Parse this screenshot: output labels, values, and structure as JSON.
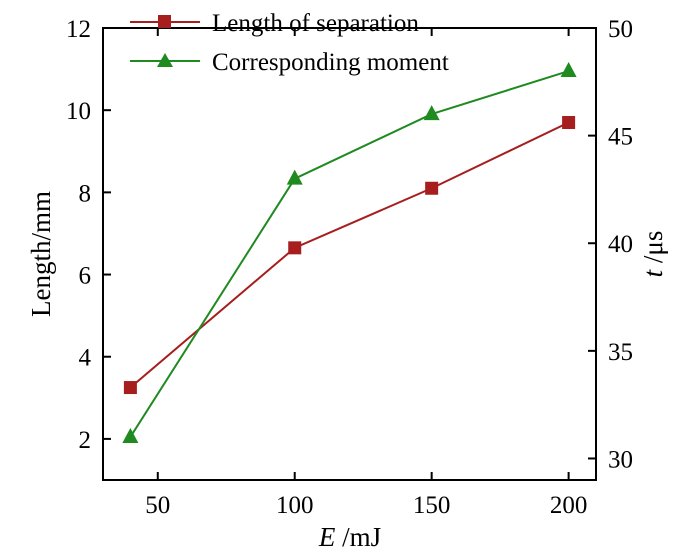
{
  "chart_data": {
    "type": "line",
    "x": [
      40,
      100,
      150,
      200
    ],
    "xlim": [
      30,
      210
    ],
    "x_ticks": [
      50,
      100,
      150,
      200
    ],
    "x_tick_labels": [
      "50",
      "100",
      "150",
      "200"
    ],
    "xlabel": {
      "symbol": "E",
      "unit": " /mJ"
    },
    "left_axis": {
      "label": "Length/mm",
      "ylim": [
        1,
        12
      ],
      "ticks": [
        2,
        4,
        6,
        8,
        10,
        12
      ],
      "tick_labels": [
        "2",
        "4",
        "6",
        "8",
        "10",
        "12"
      ]
    },
    "right_axis": {
      "label_symbol": "t",
      "label_unit": " /μs",
      "ylim": [
        29,
        50
      ],
      "ticks": [
        30,
        35,
        40,
        45,
        50
      ],
      "tick_labels": [
        "30",
        "35",
        "40",
        "45",
        "50"
      ]
    },
    "series": [
      {
        "name": "Length of separation",
        "axis": "left",
        "marker": "square",
        "color": "#a61e1e",
        "values": [
          3.25,
          6.65,
          8.1,
          9.7
        ]
      },
      {
        "name": "Corresponding moment",
        "axis": "right",
        "marker": "triangle",
        "color": "#1f8a1f",
        "values": [
          31.0,
          43.0,
          46.0,
          48.0
        ]
      }
    ],
    "legend_position": "top-left"
  }
}
